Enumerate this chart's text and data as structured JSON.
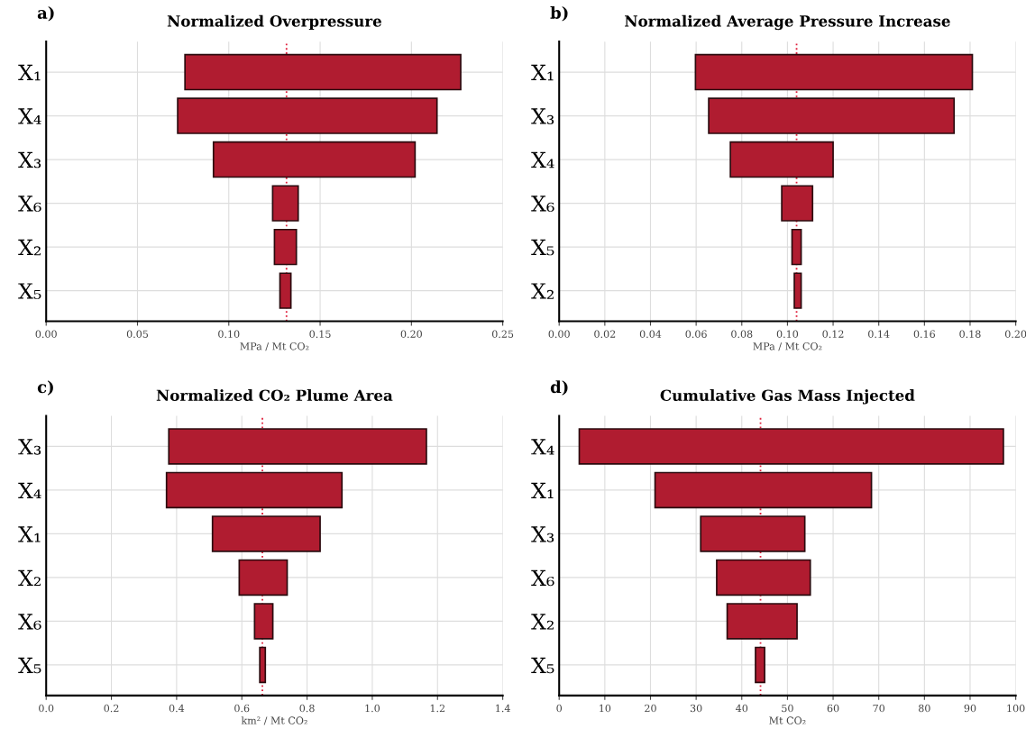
{
  "chart_data": [
    {
      "type": "bar",
      "orientation": "horizontal",
      "title": "Normalized Overpressure",
      "annotations": [
        "a)"
      ],
      "xlabel": "MPa / Mt CO₂",
      "categories": [
        "X₁",
        "X₄",
        "X₃",
        "X₆",
        "X₂",
        "X₅"
      ],
      "base": [
        0.076,
        0.072,
        0.0916,
        0.124,
        0.125,
        0.128
      ],
      "values": [
        0.151,
        0.142,
        0.1104,
        0.014,
        0.012,
        0.006
      ],
      "color": "#b01c30",
      "xlim": [
        0,
        0.25
      ],
      "xticks": [
        {
          "value": 0,
          "label": "0.00"
        },
        {
          "value": 0.05,
          "label": "0.05"
        },
        {
          "value": 0.1,
          "label": "0.10"
        },
        {
          "value": 0.15,
          "label": "0.15"
        },
        {
          "value": 0.2,
          "label": "0.20"
        },
        {
          "value": 0.25,
          "label": "0.25"
        }
      ],
      "grid": true,
      "ref_lines": [
        {
          "axis": "x",
          "value": 0.1316,
          "color": "#e0203c",
          "line_style": "dotted"
        }
      ]
    },
    {
      "type": "bar",
      "orientation": "horizontal",
      "title": "Normalized Average Pressure Increase",
      "annotations": [
        "b)"
      ],
      "xlabel": "MPa / Mt CO₂",
      "categories": [
        "X₁",
        "X₃",
        "X₄",
        "X₆",
        "X₅",
        "X₂"
      ],
      "base": [
        0.0597,
        0.0655,
        0.075,
        0.0975,
        0.102,
        0.103
      ],
      "values": [
        0.1213,
        0.1075,
        0.045,
        0.0135,
        0.004,
        0.003
      ],
      "color": "#b01c30",
      "xlim": [
        0,
        0.2
      ],
      "xticks": [
        {
          "value": 0,
          "label": "0.00"
        },
        {
          "value": 0.02,
          "label": "0.02"
        },
        {
          "value": 0.04,
          "label": "0.04"
        },
        {
          "value": 0.06,
          "label": "0.06"
        },
        {
          "value": 0.08,
          "label": "0.08"
        },
        {
          "value": 0.1,
          "label": "0.10"
        },
        {
          "value": 0.12,
          "label": "0.12"
        },
        {
          "value": 0.14,
          "label": "0.14"
        },
        {
          "value": 0.16,
          "label": "0.16"
        },
        {
          "value": 0.18,
          "label": "0.18"
        },
        {
          "value": 0.2,
          "label": "0.20"
        }
      ],
      "grid": true,
      "ref_lines": [
        {
          "axis": "x",
          "value": 0.104,
          "color": "#e0203c",
          "line_style": "dotted"
        }
      ]
    },
    {
      "type": "bar",
      "orientation": "horizontal",
      "title": "Normalized CO₂ Plume Area",
      "annotations": [
        "c)"
      ],
      "xlabel": "km² / Mt CO₂",
      "categories": [
        "X₃",
        "X₄",
        "X₁",
        "X₂",
        "X₆",
        "X₅"
      ],
      "base": [
        0.376,
        0.369,
        0.51,
        0.592,
        0.639,
        0.655
      ],
      "values": [
        0.79,
        0.538,
        0.33,
        0.147,
        0.056,
        0.017
      ],
      "color": "#b01c30",
      "xlim": [
        0,
        1.4
      ],
      "xticks": [
        {
          "value": 0,
          "label": "0.0"
        },
        {
          "value": 0.2,
          "label": "0.2"
        },
        {
          "value": 0.4,
          "label": "0.4"
        },
        {
          "value": 0.6,
          "label": "0.6"
        },
        {
          "value": 0.8,
          "label": "0.8"
        },
        {
          "value": 1.0,
          "label": "1.0"
        },
        {
          "value": 1.2,
          "label": "1.2"
        },
        {
          "value": 1.4,
          "label": "1.4"
        }
      ],
      "grid": true,
      "ref_lines": [
        {
          "axis": "x",
          "value": 0.663,
          "color": "#e0203c",
          "line_style": "dotted"
        }
      ]
    },
    {
      "type": "bar",
      "orientation": "horizontal",
      "title": "Cumulative Gas Mass Injected",
      "annotations": [
        "d)"
      ],
      "xlabel": "Mt CO₂",
      "categories": [
        "X₄",
        "X₁",
        "X₃",
        "X₆",
        "X₂",
        "X₅"
      ],
      "base": [
        4.4,
        21.0,
        31.0,
        34.5,
        36.8,
        43.0
      ],
      "values": [
        92.9,
        47.4,
        22.8,
        20.5,
        15.3,
        2.0
      ],
      "color": "#b01c30",
      "xlim": [
        0,
        100
      ],
      "xticks": [
        0,
        10,
        20,
        30,
        40,
        50,
        60,
        70,
        80,
        90,
        100
      ],
      "grid": true,
      "ref_lines": [
        {
          "axis": "x",
          "value": 44.1,
          "color": "#e0203c",
          "line_style": "dotted"
        }
      ]
    }
  ]
}
